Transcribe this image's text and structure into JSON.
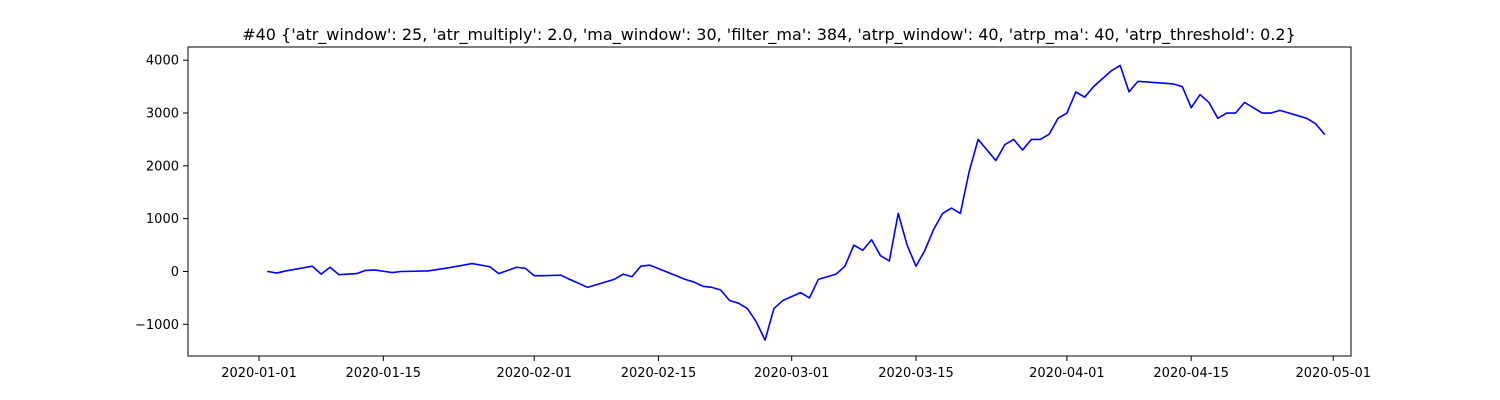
{
  "chart_data": {
    "type": "line",
    "title": "#40 {'atr_window': 25, 'atr_multiply': 2.0, 'ma_window': 30, 'filter_ma': 384, 'atrp_window': 40, 'atrp_ma': 40, 'atrp_threshold': 0.2}",
    "xlabel": "",
    "ylabel": "",
    "grid": false,
    "xlim": [
      "2019-12-24",
      "2020-05-03"
    ],
    "ylim": [
      -1600,
      4250
    ],
    "xticks": [
      {
        "date": "2020-01-01",
        "label": "2020-01-01"
      },
      {
        "date": "2020-01-15",
        "label": "2020-01-15"
      },
      {
        "date": "2020-02-01",
        "label": "2020-02-01"
      },
      {
        "date": "2020-02-15",
        "label": "2020-02-15"
      },
      {
        "date": "2020-03-01",
        "label": "2020-03-01"
      },
      {
        "date": "2020-03-15",
        "label": "2020-03-15"
      },
      {
        "date": "2020-04-01",
        "label": "2020-04-01"
      },
      {
        "date": "2020-04-15",
        "label": "2020-04-15"
      },
      {
        "date": "2020-05-01",
        "label": "2020-05-01"
      }
    ],
    "yticks": [
      {
        "value": -1000,
        "label": "−1000"
      },
      {
        "value": 0,
        "label": "0"
      },
      {
        "value": 1000,
        "label": "1000"
      },
      {
        "value": 2000,
        "label": "2000"
      },
      {
        "value": 3000,
        "label": "3000"
      },
      {
        "value": 4000,
        "label": "4000"
      }
    ],
    "series": [
      {
        "color": "#0000ff",
        "x": [
          "2020-01-02",
          "2020-01-03",
          "2020-01-04",
          "2020-01-06",
          "2020-01-07",
          "2020-01-08",
          "2020-01-09",
          "2020-01-10",
          "2020-01-12",
          "2020-01-13",
          "2020-01-14",
          "2020-01-16",
          "2020-01-17",
          "2020-01-20",
          "2020-01-22",
          "2020-01-24",
          "2020-01-25",
          "2020-01-27",
          "2020-01-28",
          "2020-01-30",
          "2020-01-31",
          "2020-02-01",
          "2020-02-02",
          "2020-02-04",
          "2020-02-05",
          "2020-02-07",
          "2020-02-10",
          "2020-02-11",
          "2020-02-12",
          "2020-02-13",
          "2020-02-14",
          "2020-02-17",
          "2020-02-18",
          "2020-02-19",
          "2020-02-20",
          "2020-02-21",
          "2020-02-22",
          "2020-02-23",
          "2020-02-24",
          "2020-02-25",
          "2020-02-26",
          "2020-02-27",
          "2020-02-28",
          "2020-02-29",
          "2020-03-02",
          "2020-03-03",
          "2020-03-04",
          "2020-03-05",
          "2020-03-06",
          "2020-03-07",
          "2020-03-08",
          "2020-03-09",
          "2020-03-10",
          "2020-03-11",
          "2020-03-12",
          "2020-03-13",
          "2020-03-14",
          "2020-03-15",
          "2020-03-16",
          "2020-03-17",
          "2020-03-18",
          "2020-03-19",
          "2020-03-20",
          "2020-03-21",
          "2020-03-22",
          "2020-03-23",
          "2020-03-24",
          "2020-03-25",
          "2020-03-26",
          "2020-03-27",
          "2020-03-28",
          "2020-03-29",
          "2020-03-30",
          "2020-03-31",
          "2020-04-01",
          "2020-04-02",
          "2020-04-03",
          "2020-04-04",
          "2020-04-06",
          "2020-04-07",
          "2020-04-08",
          "2020-04-09",
          "2020-04-13",
          "2020-04-14",
          "2020-04-15",
          "2020-04-16",
          "2020-04-17",
          "2020-04-18",
          "2020-04-19",
          "2020-04-20",
          "2020-04-21",
          "2020-04-22",
          "2020-04-23",
          "2020-04-24",
          "2020-04-25",
          "2020-04-28",
          "2020-04-29",
          "2020-04-30"
        ],
        "y": [
          0,
          -30,
          10,
          70,
          100,
          -50,
          80,
          -60,
          -40,
          20,
          30,
          -20,
          0,
          10,
          60,
          120,
          150,
          90,
          -40,
          80,
          60,
          -80,
          -80,
          -70,
          -150,
          -300,
          -150,
          -50,
          -100,
          100,
          120,
          -80,
          -150,
          -200,
          -280,
          -300,
          -350,
          -550,
          -600,
          -700,
          -950,
          -1300,
          -700,
          -550,
          -400,
          -500,
          -150,
          -100,
          -50,
          100,
          500,
          400,
          600,
          300,
          200,
          1100,
          500,
          100,
          400,
          800,
          1100,
          1200,
          1100,
          1900,
          2500,
          2300,
          2100,
          2400,
          2500,
          2300,
          2500,
          2500,
          2600,
          2900,
          3000,
          3400,
          3300,
          3500,
          3800,
          3900,
          3400,
          3600,
          3550,
          3500,
          3100,
          3350,
          3200,
          2900,
          3000,
          3000,
          3200,
          3100,
          3000,
          3000,
          3050,
          2900,
          2800,
          2600
        ]
      }
    ]
  }
}
